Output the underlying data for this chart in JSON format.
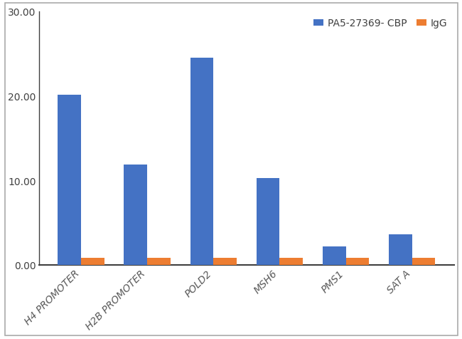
{
  "categories": [
    "H4 PROMOTER",
    "H2B PROMOTER",
    "POLD2",
    "MSH6",
    "PMS1",
    "SAT A"
  ],
  "cbp_values": [
    20.1,
    11.9,
    24.5,
    10.3,
    2.2,
    3.6
  ],
  "igg_values": [
    0.8,
    0.8,
    0.8,
    0.8,
    0.8,
    0.8
  ],
  "cbp_color": "#4472C4",
  "igg_color": "#ED7D31",
  "legend_labels": [
    "PA5-27369- CBP",
    "IgG"
  ],
  "ylim": [
    0,
    30
  ],
  "yticks": [
    0.0,
    10.0,
    20.0,
    30.0
  ],
  "ytick_labels": [
    "0.00",
    "10.00",
    "20.00",
    "30.00"
  ],
  "bar_width": 0.35,
  "plot_bg": "#ffffff",
  "fig_bg": "#ffffff",
  "border_color": "#aaaaaa"
}
